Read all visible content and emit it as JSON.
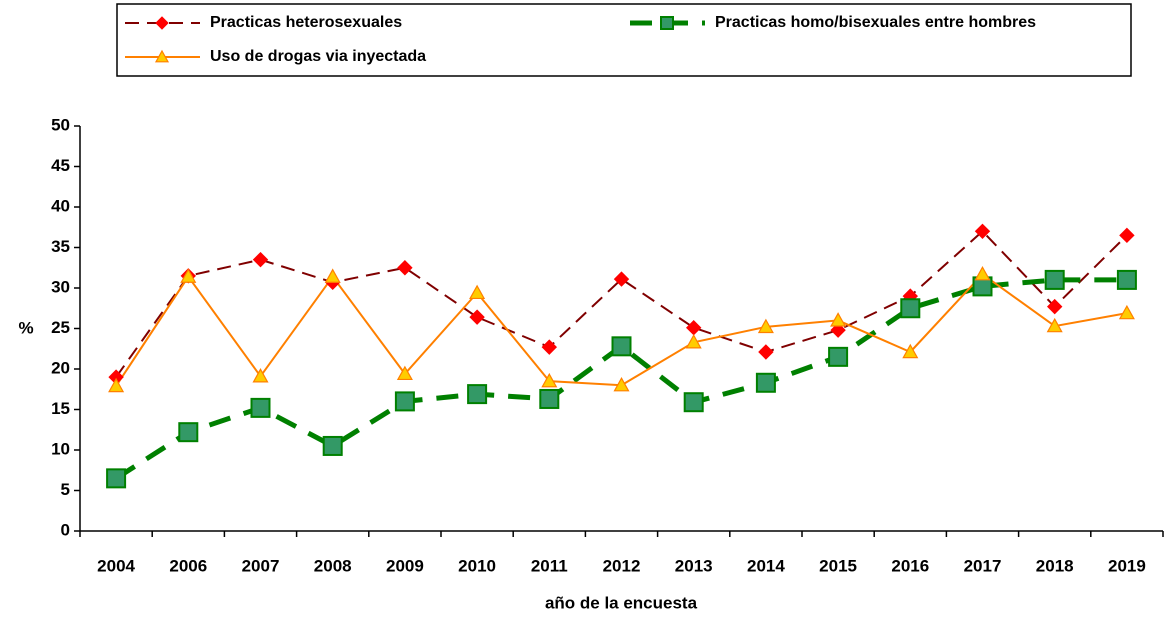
{
  "chart_data": {
    "type": "line",
    "x_label": "año de la encuesta",
    "y_label": "%",
    "categories": [
      "2004",
      "2006",
      "2007",
      "2008",
      "2009",
      "2010",
      "2011",
      "2012",
      "2013",
      "2014",
      "2015",
      "2016",
      "2017",
      "2018",
      "2019"
    ],
    "series": [
      {
        "name": "Practicas heterosexuales",
        "color": "#800000",
        "values": [
          19.0,
          31.5,
          33.5,
          30.7,
          32.5,
          26.4,
          22.7,
          31.1,
          25.1,
          22.1,
          24.8,
          29.0,
          37.0,
          27.7,
          36.5
        ]
      },
      {
        "name": "Practicas homo/bisexuales entre hombres",
        "color": "#008000",
        "values": [
          6.5,
          12.2,
          15.2,
          10.5,
          16.0,
          16.9,
          16.3,
          22.8,
          15.9,
          18.3,
          21.5,
          27.5,
          30.2,
          31.0,
          31.0
        ]
      },
      {
        "name": "Uso de drogas via inyectada",
        "color": "#ff8000",
        "values": [
          17.9,
          31.4,
          19.1,
          31.4,
          19.4,
          29.4,
          18.5,
          18.0,
          23.3,
          25.2,
          26.0,
          22.1,
          31.7,
          25.3,
          26.9
        ]
      }
    ],
    "ylim": [
      0,
      50
    ],
    "yticks": [
      0,
      5,
      10,
      15,
      20,
      25,
      30,
      35,
      40,
      45,
      50
    ]
  }
}
